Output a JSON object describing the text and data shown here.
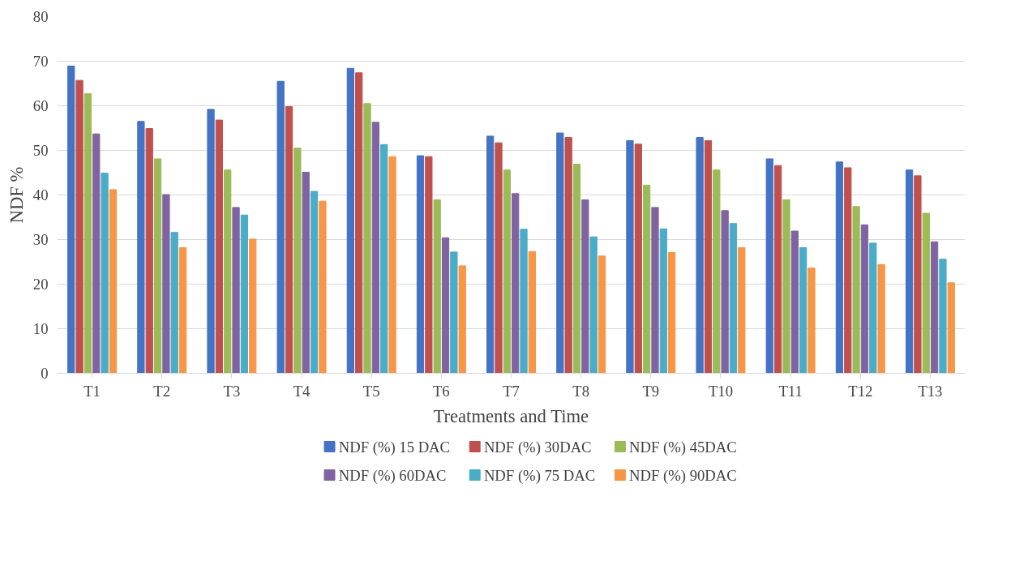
{
  "chart_data": {
    "type": "bar",
    "xlabel": "Treatments and Time",
    "ylabel": "NDF %",
    "categories": [
      "T1",
      "T2",
      "T3",
      "T4",
      "T5",
      "T6",
      "T7",
      "T8",
      "T9",
      "T10",
      "T11",
      "T12",
      "T13"
    ],
    "series": [
      {
        "name": "NDF (%) 15 DAC",
        "color": "#4472c4",
        "values": [
          68.9,
          56.5,
          59.2,
          65.5,
          68.4,
          48.8,
          53.2,
          53.9,
          52.2,
          52.9,
          48.1,
          47.4,
          45.6
        ]
      },
      {
        "name": "NDF (%) 30DAC",
        "color": "#c0504d",
        "values": [
          65.7,
          54.9,
          56.8,
          59.8,
          67.4,
          48.6,
          51.7,
          52.9,
          51.4,
          52.2,
          46.6,
          46.1,
          44.3
        ]
      },
      {
        "name": "NDF (%) 45DAC",
        "color": "#9bbb59",
        "values": [
          62.7,
          48.1,
          45.6,
          50.5,
          60.5,
          38.9,
          45.6,
          46.9,
          42.2,
          45.6,
          38.9,
          37.4,
          35.9
        ]
      },
      {
        "name": "NDF (%) 60DAC",
        "color": "#8064a2",
        "values": [
          53.7,
          40.1,
          37.2,
          45.1,
          56.3,
          30.4,
          40.3,
          38.9,
          37.2,
          36.5,
          31.9,
          33.3,
          29.5
        ]
      },
      {
        "name": "NDF (%) 75 DAC",
        "color": "#4bacc6",
        "values": [
          44.9,
          31.6,
          35.5,
          40.8,
          51.3,
          27.2,
          32.3,
          30.6,
          32.4,
          33.6,
          28.2,
          29.2,
          25.6
        ]
      },
      {
        "name": "NDF (%) 90DAC",
        "color": "#f79646",
        "values": [
          41.2,
          28.2,
          30.1,
          38.6,
          48.6,
          24.1,
          27.3,
          26.3,
          27.1,
          28.2,
          23.6,
          24.4,
          20.3
        ]
      }
    ],
    "ylim": [
      0,
      80
    ],
    "yticks": [
      0,
      10,
      20,
      30,
      40,
      50,
      60,
      70,
      80
    ],
    "grid": "y",
    "legend": "bottom"
  }
}
